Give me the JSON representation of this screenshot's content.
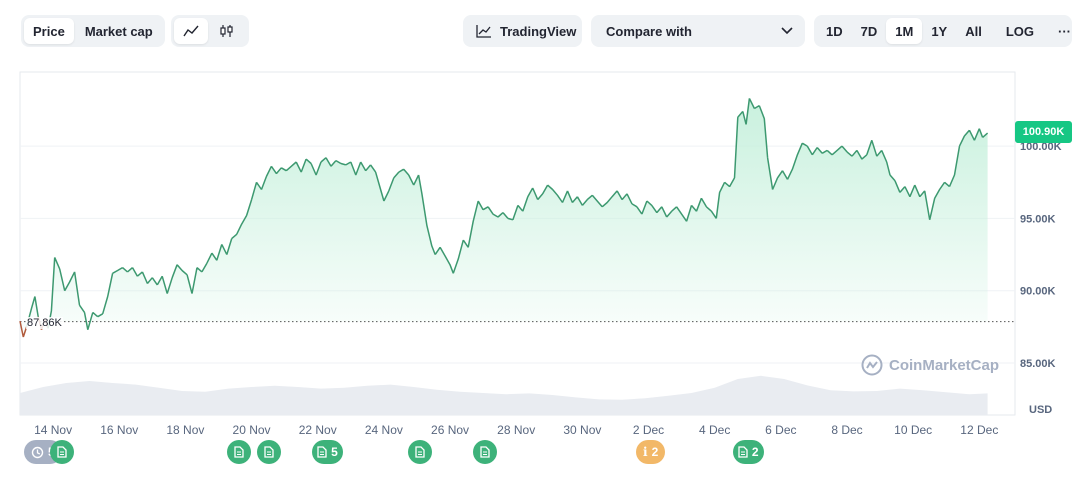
{
  "toolbar": {
    "metric_tabs": [
      {
        "label": "Price",
        "active": true
      },
      {
        "label": "Market cap",
        "active": false
      }
    ],
    "chart_type_icons": [
      "line-chart-icon",
      "candlestick-icon"
    ],
    "tradingview_label": "TradingView",
    "compare_label": "Compare with",
    "range_options": [
      {
        "label": "1D",
        "active": false
      },
      {
        "label": "7D",
        "active": false
      },
      {
        "label": "1M",
        "active": true
      },
      {
        "label": "1Y",
        "active": false
      },
      {
        "label": "All",
        "active": false
      }
    ],
    "log_label": "LOG",
    "more_label": "···"
  },
  "colors": {
    "up_line": "#3d9970",
    "down_line": "#b05a3c",
    "area_top": "#c6f0dc",
    "price_tag": "#16c784",
    "grid": "#eff2f5"
  },
  "current_price_label": "100.90K",
  "start_price_label": "87.86K",
  "watermark": "CoinMarketCap",
  "currency_label": "USD",
  "chart_data": {
    "type": "line",
    "title": "",
    "xlabel": "",
    "ylabel": "",
    "x_start": "13 Nov",
    "x_end": "12 Dec",
    "x_ticks": [
      {
        "label": "14 Nov",
        "day": 1
      },
      {
        "label": "16 Nov",
        "day": 3
      },
      {
        "label": "18 Nov",
        "day": 5
      },
      {
        "label": "20 Nov",
        "day": 7
      },
      {
        "label": "22 Nov",
        "day": 9
      },
      {
        "label": "24 Nov",
        "day": 11
      },
      {
        "label": "26 Nov",
        "day": 13
      },
      {
        "label": "28 Nov",
        "day": 15
      },
      {
        "label": "30 Nov",
        "day": 17
      },
      {
        "label": "2 Dec",
        "day": 19
      },
      {
        "label": "4 Dec",
        "day": 21
      },
      {
        "label": "6 Dec",
        "day": 23
      },
      {
        "label": "8 Dec",
        "day": 25
      },
      {
        "label": "10 Dec",
        "day": 27
      },
      {
        "label": "12 Dec",
        "day": 29
      }
    ],
    "y_ticks": [
      {
        "label": "85.00K",
        "value": 85000
      },
      {
        "label": "90.00K",
        "value": 90000
      },
      {
        "label": "95.00K",
        "value": 95000
      },
      {
        "label": "100.00K",
        "value": 100000
      }
    ],
    "ylim": [
      83500,
      105000
    ],
    "baseline": 87860,
    "last_value": 100900,
    "series": [
      {
        "points": [
          [
            0.0,
            87.9
          ],
          [
            0.1,
            86.8
          ],
          [
            0.2,
            87.5
          ],
          [
            0.35,
            88.8
          ],
          [
            0.45,
            89.6
          ],
          [
            0.55,
            88.2
          ],
          [
            0.65,
            87.3
          ],
          [
            0.75,
            88.0
          ],
          [
            0.85,
            87.4
          ],
          [
            0.95,
            88.6
          ],
          [
            1.05,
            92.3
          ],
          [
            1.2,
            91.5
          ],
          [
            1.35,
            90.0
          ],
          [
            1.5,
            90.6
          ],
          [
            1.65,
            91.3
          ],
          [
            1.8,
            89.0
          ],
          [
            1.95,
            88.5
          ],
          [
            2.05,
            87.3
          ],
          [
            2.2,
            88.5
          ],
          [
            2.35,
            88.2
          ],
          [
            2.5,
            88.4
          ],
          [
            2.65,
            89.6
          ],
          [
            2.8,
            91.2
          ],
          [
            2.95,
            91.4
          ],
          [
            3.1,
            91.6
          ],
          [
            3.25,
            91.3
          ],
          [
            3.4,
            91.6
          ],
          [
            3.55,
            91.0
          ],
          [
            3.7,
            91.3
          ],
          [
            3.85,
            90.5
          ],
          [
            4.0,
            90.9
          ],
          [
            4.15,
            90.4
          ],
          [
            4.3,
            91.0
          ],
          [
            4.45,
            89.8
          ],
          [
            4.6,
            90.9
          ],
          [
            4.75,
            91.8
          ],
          [
            4.9,
            91.4
          ],
          [
            5.05,
            91.1
          ],
          [
            5.2,
            89.8
          ],
          [
            5.35,
            91.6
          ],
          [
            5.5,
            91.3
          ],
          [
            5.65,
            91.9
          ],
          [
            5.8,
            92.6
          ],
          [
            5.95,
            92.1
          ],
          [
            6.1,
            93.2
          ],
          [
            6.25,
            92.5
          ],
          [
            6.4,
            93.6
          ],
          [
            6.55,
            93.9
          ],
          [
            6.7,
            94.6
          ],
          [
            6.85,
            95.2
          ],
          [
            7.0,
            96.3
          ],
          [
            7.15,
            97.5
          ],
          [
            7.3,
            97.0
          ],
          [
            7.45,
            97.9
          ],
          [
            7.6,
            98.6
          ],
          [
            7.75,
            98.1
          ],
          [
            7.9,
            98.5
          ],
          [
            8.05,
            98.3
          ],
          [
            8.2,
            98.6
          ],
          [
            8.35,
            98.9
          ],
          [
            8.5,
            98.2
          ],
          [
            8.65,
            99.1
          ],
          [
            8.8,
            98.8
          ],
          [
            8.95,
            98.0
          ],
          [
            9.1,
            98.9
          ],
          [
            9.25,
            99.2
          ],
          [
            9.4,
            98.6
          ],
          [
            9.55,
            99.0
          ],
          [
            9.7,
            98.8
          ],
          [
            9.85,
            98.7
          ],
          [
            10.0,
            98.9
          ],
          [
            10.15,
            98.0
          ],
          [
            10.3,
            98.9
          ],
          [
            10.45,
            98.3
          ],
          [
            10.6,
            98.7
          ],
          [
            10.75,
            98.2
          ],
          [
            10.9,
            97.0
          ],
          [
            11.0,
            96.2
          ],
          [
            11.15,
            96.9
          ],
          [
            11.3,
            97.8
          ],
          [
            11.45,
            98.2
          ],
          [
            11.6,
            98.4
          ],
          [
            11.75,
            98.0
          ],
          [
            11.9,
            97.3
          ],
          [
            12.05,
            98.0
          ],
          [
            12.15,
            96.7
          ],
          [
            12.3,
            94.5
          ],
          [
            12.45,
            93.1
          ],
          [
            12.55,
            92.5
          ],
          [
            12.7,
            93.0
          ],
          [
            12.85,
            92.4
          ],
          [
            13.0,
            91.8
          ],
          [
            13.1,
            91.2
          ],
          [
            13.25,
            92.2
          ],
          [
            13.4,
            93.5
          ],
          [
            13.55,
            93.0
          ],
          [
            13.7,
            94.8
          ],
          [
            13.85,
            96.2
          ],
          [
            14.0,
            95.6
          ],
          [
            14.15,
            95.8
          ],
          [
            14.3,
            95.3
          ],
          [
            14.45,
            95.1
          ],
          [
            14.6,
            95.4
          ],
          [
            14.75,
            95.0
          ],
          [
            14.9,
            94.9
          ],
          [
            15.05,
            95.9
          ],
          [
            15.2,
            95.5
          ],
          [
            15.35,
            96.5
          ],
          [
            15.5,
            97.1
          ],
          [
            15.65,
            96.3
          ],
          [
            15.8,
            96.7
          ],
          [
            15.95,
            97.3
          ],
          [
            16.1,
            97.0
          ],
          [
            16.25,
            96.6
          ],
          [
            16.4,
            96.1
          ],
          [
            16.55,
            96.9
          ],
          [
            16.7,
            96.1
          ],
          [
            16.85,
            96.5
          ],
          [
            17.0,
            95.9
          ],
          [
            17.15,
            96.3
          ],
          [
            17.3,
            96.6
          ],
          [
            17.45,
            96.2
          ],
          [
            17.6,
            95.8
          ],
          [
            17.75,
            96.1
          ],
          [
            17.9,
            96.5
          ],
          [
            18.05,
            96.9
          ],
          [
            18.2,
            96.3
          ],
          [
            18.35,
            96.7
          ],
          [
            18.5,
            96.0
          ],
          [
            18.65,
            95.8
          ],
          [
            18.8,
            95.3
          ],
          [
            18.95,
            96.2
          ],
          [
            19.1,
            95.9
          ],
          [
            19.25,
            95.4
          ],
          [
            19.4,
            95.8
          ],
          [
            19.55,
            95.1
          ],
          [
            19.7,
            95.5
          ],
          [
            19.85,
            95.8
          ],
          [
            20.0,
            95.3
          ],
          [
            20.15,
            94.8
          ],
          [
            20.3,
            95.9
          ],
          [
            20.45,
            95.5
          ],
          [
            20.6,
            96.4
          ],
          [
            20.75,
            95.8
          ],
          [
            20.9,
            95.5
          ],
          [
            21.05,
            95.0
          ],
          [
            21.15,
            96.8
          ],
          [
            21.3,
            97.5
          ],
          [
            21.45,
            97.2
          ],
          [
            21.6,
            97.8
          ],
          [
            21.7,
            102.0
          ],
          [
            21.85,
            102.4
          ],
          [
            21.95,
            101.5
          ],
          [
            22.05,
            103.3
          ],
          [
            22.2,
            102.6
          ],
          [
            22.35,
            102.8
          ],
          [
            22.5,
            101.9
          ],
          [
            22.6,
            99.2
          ],
          [
            22.75,
            97.0
          ],
          [
            22.9,
            97.8
          ],
          [
            23.05,
            98.3
          ],
          [
            23.2,
            97.7
          ],
          [
            23.35,
            98.4
          ],
          [
            23.5,
            99.4
          ],
          [
            23.65,
            100.2
          ],
          [
            23.8,
            100.0
          ],
          [
            23.95,
            99.4
          ],
          [
            24.1,
            99.9
          ],
          [
            24.25,
            99.5
          ],
          [
            24.4,
            99.7
          ],
          [
            24.55,
            99.4
          ],
          [
            24.7,
            99.7
          ],
          [
            24.85,
            100.0
          ],
          [
            25.0,
            99.6
          ],
          [
            25.15,
            99.3
          ],
          [
            25.3,
            99.7
          ],
          [
            25.45,
            99.1
          ],
          [
            25.6,
            99.4
          ],
          [
            25.75,
            100.4
          ],
          [
            25.9,
            99.3
          ],
          [
            26.05,
            99.7
          ],
          [
            26.2,
            98.9
          ],
          [
            26.3,
            98.0
          ],
          [
            26.45,
            97.6
          ],
          [
            26.6,
            96.8
          ],
          [
            26.75,
            97.2
          ],
          [
            26.9,
            96.5
          ],
          [
            27.05,
            97.3
          ],
          [
            27.2,
            96.5
          ],
          [
            27.35,
            96.9
          ],
          [
            27.5,
            94.9
          ],
          [
            27.65,
            96.4
          ],
          [
            27.8,
            97.0
          ],
          [
            27.95,
            97.5
          ],
          [
            28.1,
            97.2
          ],
          [
            28.25,
            98.0
          ],
          [
            28.4,
            100.0
          ],
          [
            28.55,
            100.7
          ],
          [
            28.7,
            101.1
          ],
          [
            28.85,
            100.4
          ],
          [
            29.0,
            101.2
          ],
          [
            29.1,
            100.6
          ],
          [
            29.25,
            100.9
          ]
        ]
      }
    ],
    "volume_profile": [
      [
        0,
        5.5
      ],
      [
        0.7,
        7.0
      ],
      [
        1.4,
        8.0
      ],
      [
        2.1,
        8.5
      ],
      [
        2.8,
        8.0
      ],
      [
        3.5,
        7.6
      ],
      [
        4.2,
        6.8
      ],
      [
        4.9,
        6.0
      ],
      [
        5.6,
        5.8
      ],
      [
        6.3,
        6.6
      ],
      [
        7.0,
        7.0
      ],
      [
        7.7,
        7.3
      ],
      [
        8.4,
        7.0
      ],
      [
        9.1,
        6.6
      ],
      [
        9.8,
        6.8
      ],
      [
        10.5,
        7.3
      ],
      [
        11.2,
        7.6
      ],
      [
        11.9,
        7.0
      ],
      [
        12.6,
        6.3
      ],
      [
        13.3,
        5.8
      ],
      [
        14.0,
        5.5
      ],
      [
        14.7,
        5.2
      ],
      [
        15.4,
        5.4
      ],
      [
        16.1,
        5.0
      ],
      [
        16.8,
        4.4
      ],
      [
        17.5,
        3.9
      ],
      [
        18.2,
        3.8
      ],
      [
        18.9,
        4.2
      ],
      [
        19.6,
        4.8
      ],
      [
        20.3,
        5.5
      ],
      [
        21.0,
        6.8
      ],
      [
        21.7,
        9.0
      ],
      [
        22.4,
        9.8
      ],
      [
        23.1,
        9.0
      ],
      [
        23.8,
        7.4
      ],
      [
        24.5,
        6.2
      ],
      [
        25.2,
        5.9
      ],
      [
        25.9,
        6.0
      ],
      [
        26.6,
        6.6
      ],
      [
        27.3,
        6.2
      ],
      [
        28.0,
        5.7
      ],
      [
        28.7,
        5.2
      ],
      [
        29.25,
        5.4
      ]
    ]
  },
  "event_markers": [
    {
      "type": "history",
      "label": "5",
      "day": 0.22,
      "icon": "history-clock-icon"
    },
    {
      "type": "news",
      "label": "",
      "day": 1.27,
      "icon": "document-icon"
    },
    {
      "type": "news",
      "label": "",
      "day": 6.63,
      "icon": "document-icon"
    },
    {
      "type": "news",
      "label": "",
      "day": 7.53,
      "icon": "document-icon"
    },
    {
      "type": "news",
      "label": "5",
      "day": 9.3,
      "icon": "document-icon"
    },
    {
      "type": "news",
      "label": "",
      "day": 12.08,
      "icon": "document-icon"
    },
    {
      "type": "news",
      "label": "",
      "day": 14.07,
      "icon": "document-icon"
    },
    {
      "type": "info",
      "label": "2",
      "day": 19.06,
      "icon": "info-icon"
    },
    {
      "type": "news",
      "label": "2",
      "day": 22.02,
      "icon": "document-icon"
    }
  ]
}
